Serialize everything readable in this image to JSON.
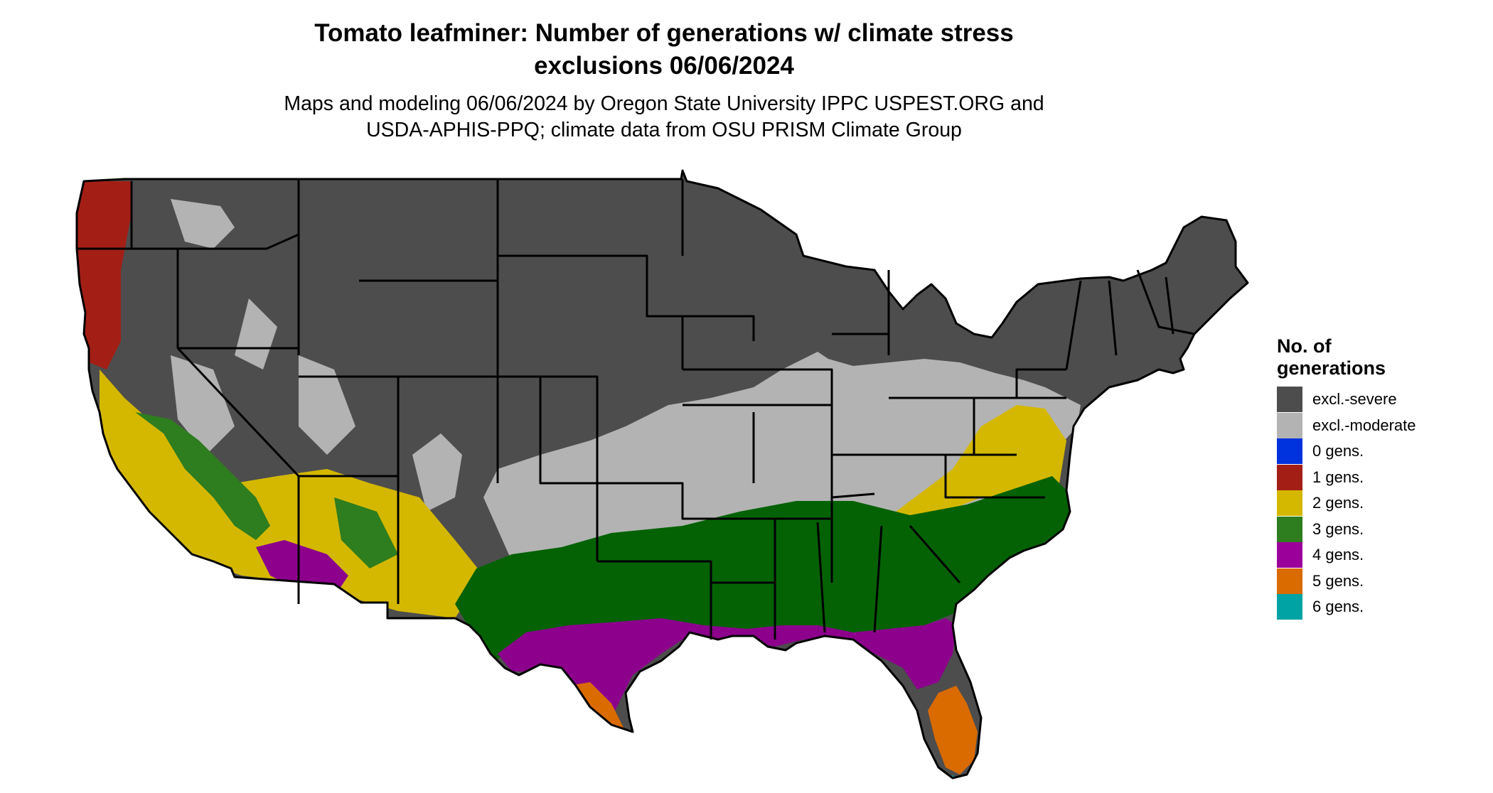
{
  "title": {
    "line1": "Tomato leafminer: Number of generations w/ climate stress",
    "line2": "exclusions 06/06/2024"
  },
  "subtitle": {
    "line1": "Maps and modeling 06/06/2024 by Oregon State University IPPC USPEST.ORG and",
    "line2": "USDA-APHIS-PPQ; climate data from OSU PRISM Climate Group"
  },
  "legend": {
    "title_line1": "No. of",
    "title_line2": "generations",
    "items": [
      {
        "label": "excl.-severe",
        "color": "#4d4d4d"
      },
      {
        "label": "excl.-moderate",
        "color": "#b3b3b3"
      },
      {
        "label": "0 gens.",
        "color": "#0033dd"
      },
      {
        "label": "1 gens.",
        "color": "#a31f16"
      },
      {
        "label": "2 gens.",
        "color": "#d4b800"
      },
      {
        "label": "3 gens.",
        "color": "#2e7d1f"
      },
      {
        "label": "4 gens.",
        "color": "#9b009b"
      },
      {
        "label": "5 gens.",
        "color": "#d96b00"
      },
      {
        "label": "6 gens.",
        "color": "#00a3a3"
      }
    ]
  }
}
